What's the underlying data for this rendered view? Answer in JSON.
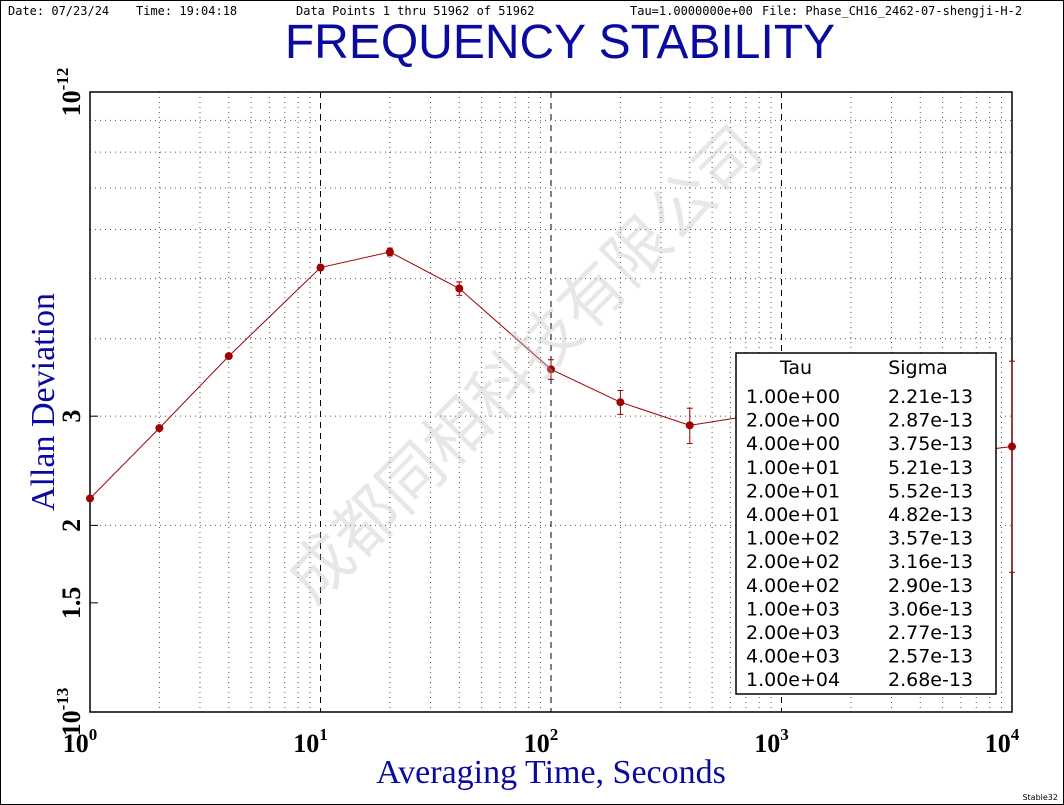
{
  "chart_data": {
    "type": "line",
    "header": {
      "date": "Date: 07/23/24",
      "time": "Time: 19:04:18",
      "points": "Data Points 1 thru 51962 of 51962",
      "tau": "Tau=1.0000000e+00",
      "file": "File: Phase_CH16_2462-07-shengji-H-2"
    },
    "title": "FREQUENCY STABILITY",
    "x_label": "Averaging Time, Seconds",
    "y_label": "Allan Deviation",
    "footer": "Stable32",
    "watermark": "成都同相科技有限公司",
    "log_x": true,
    "log_y": true,
    "grid": true,
    "xlim": [
      1,
      10000
    ],
    "xticks": [
      {
        "value": 1,
        "label": "10",
        "power": "0"
      },
      {
        "value": 10,
        "label": "10",
        "power": "1"
      },
      {
        "value": 100,
        "label": "10",
        "power": "2"
      },
      {
        "value": 1000,
        "label": "10",
        "power": "3"
      },
      {
        "value": 10000,
        "label": "10",
        "power": "4"
      }
    ],
    "ylim": [
      1e-13,
      1e-12
    ],
    "yticks": [
      {
        "value": 1e-13,
        "label": "10",
        "power": "-13"
      },
      {
        "value": 1.5e-13,
        "label": "1.5"
      },
      {
        "value": 2e-13,
        "label": "2"
      },
      {
        "value": 3e-13,
        "label": "3"
      },
      {
        "value": 1e-12,
        "label": "10",
        "power": "-12"
      }
    ],
    "table_headers": [
      "Tau",
      "Sigma"
    ],
    "x": [
      1,
      2,
      4,
      10,
      20,
      40,
      100,
      200,
      400,
      1000,
      2000,
      4000,
      10000
    ],
    "x_labels": [
      "1.00e+00",
      "2.00e+00",
      "4.00e+00",
      "1.00e+01",
      "2.00e+01",
      "4.00e+01",
      "1.00e+02",
      "2.00e+02",
      "4.00e+02",
      "1.00e+03",
      "2.00e+03",
      "4.00e+03",
      "1.00e+04"
    ],
    "series": [
      {
        "name": "Sigma",
        "color": "#a00000",
        "values": [
          2.21e-13,
          2.87e-13,
          3.75e-13,
          5.21e-13,
          5.52e-13,
          4.82e-13,
          3.57e-13,
          3.16e-13,
          2.9e-13,
          3.06e-13,
          2.77e-13,
          2.57e-13,
          2.68e-13
        ],
        "value_labels": [
          "2.21e-13",
          "2.87e-13",
          "3.75e-13",
          "5.21e-13",
          "5.52e-13",
          "4.82e-13",
          "3.57e-13",
          "3.16e-13",
          "2.90e-13",
          "3.06e-13",
          "2.77e-13",
          "2.57e-13",
          "2.68e-13"
        ],
        "errors": [
          5e-16,
          1e-15,
          2e-15,
          5e-15,
          8e-15,
          1.2e-14,
          1.3e-14,
          1.4e-14,
          1.9e-14,
          2e-14,
          2.5e-14,
          3e-14,
          1e-13
        ]
      }
    ]
  }
}
